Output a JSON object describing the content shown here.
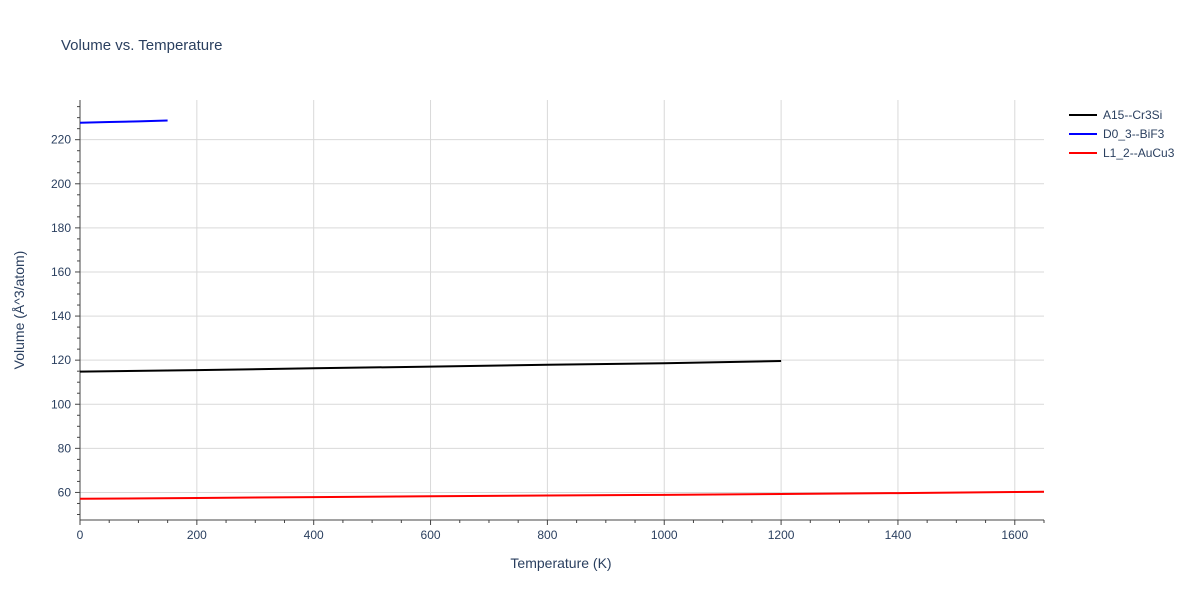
{
  "chart_data": {
    "type": "line",
    "title": "Volume vs. Temperature",
    "xlabel": "Temperature (K)",
    "ylabel": "Volume (Å^3/atom)",
    "xlim": [
      0,
      1650
    ],
    "ylim": [
      47.5,
      238
    ],
    "xticks": [
      0,
      200,
      400,
      600,
      800,
      1000,
      1200,
      1400,
      1600
    ],
    "yticks": [
      60,
      80,
      100,
      120,
      140,
      160,
      180,
      200,
      220
    ],
    "grid": true,
    "legend_position": "top-right",
    "series": [
      {
        "name": "A15--Cr3Si",
        "color": "#000000",
        "x": [
          0,
          200,
          400,
          600,
          800,
          1000,
          1200
        ],
        "y": [
          114.8,
          115.5,
          116.3,
          117.1,
          117.9,
          118.6,
          119.6
        ]
      },
      {
        "name": "D0_3--BiF3",
        "color": "#0000ff",
        "x": [
          0,
          50,
          100,
          150
        ],
        "y": [
          227.7,
          228.0,
          228.3,
          228.7
        ]
      },
      {
        "name": "L1_2--AuCu3",
        "color": "#ff0000",
        "x": [
          0,
          200,
          400,
          600,
          800,
          1000,
          1200,
          1400,
          1600,
          1650
        ],
        "y": [
          57.1,
          57.5,
          57.9,
          58.3,
          58.6,
          58.9,
          59.3,
          59.7,
          60.2,
          60.3
        ]
      }
    ]
  }
}
